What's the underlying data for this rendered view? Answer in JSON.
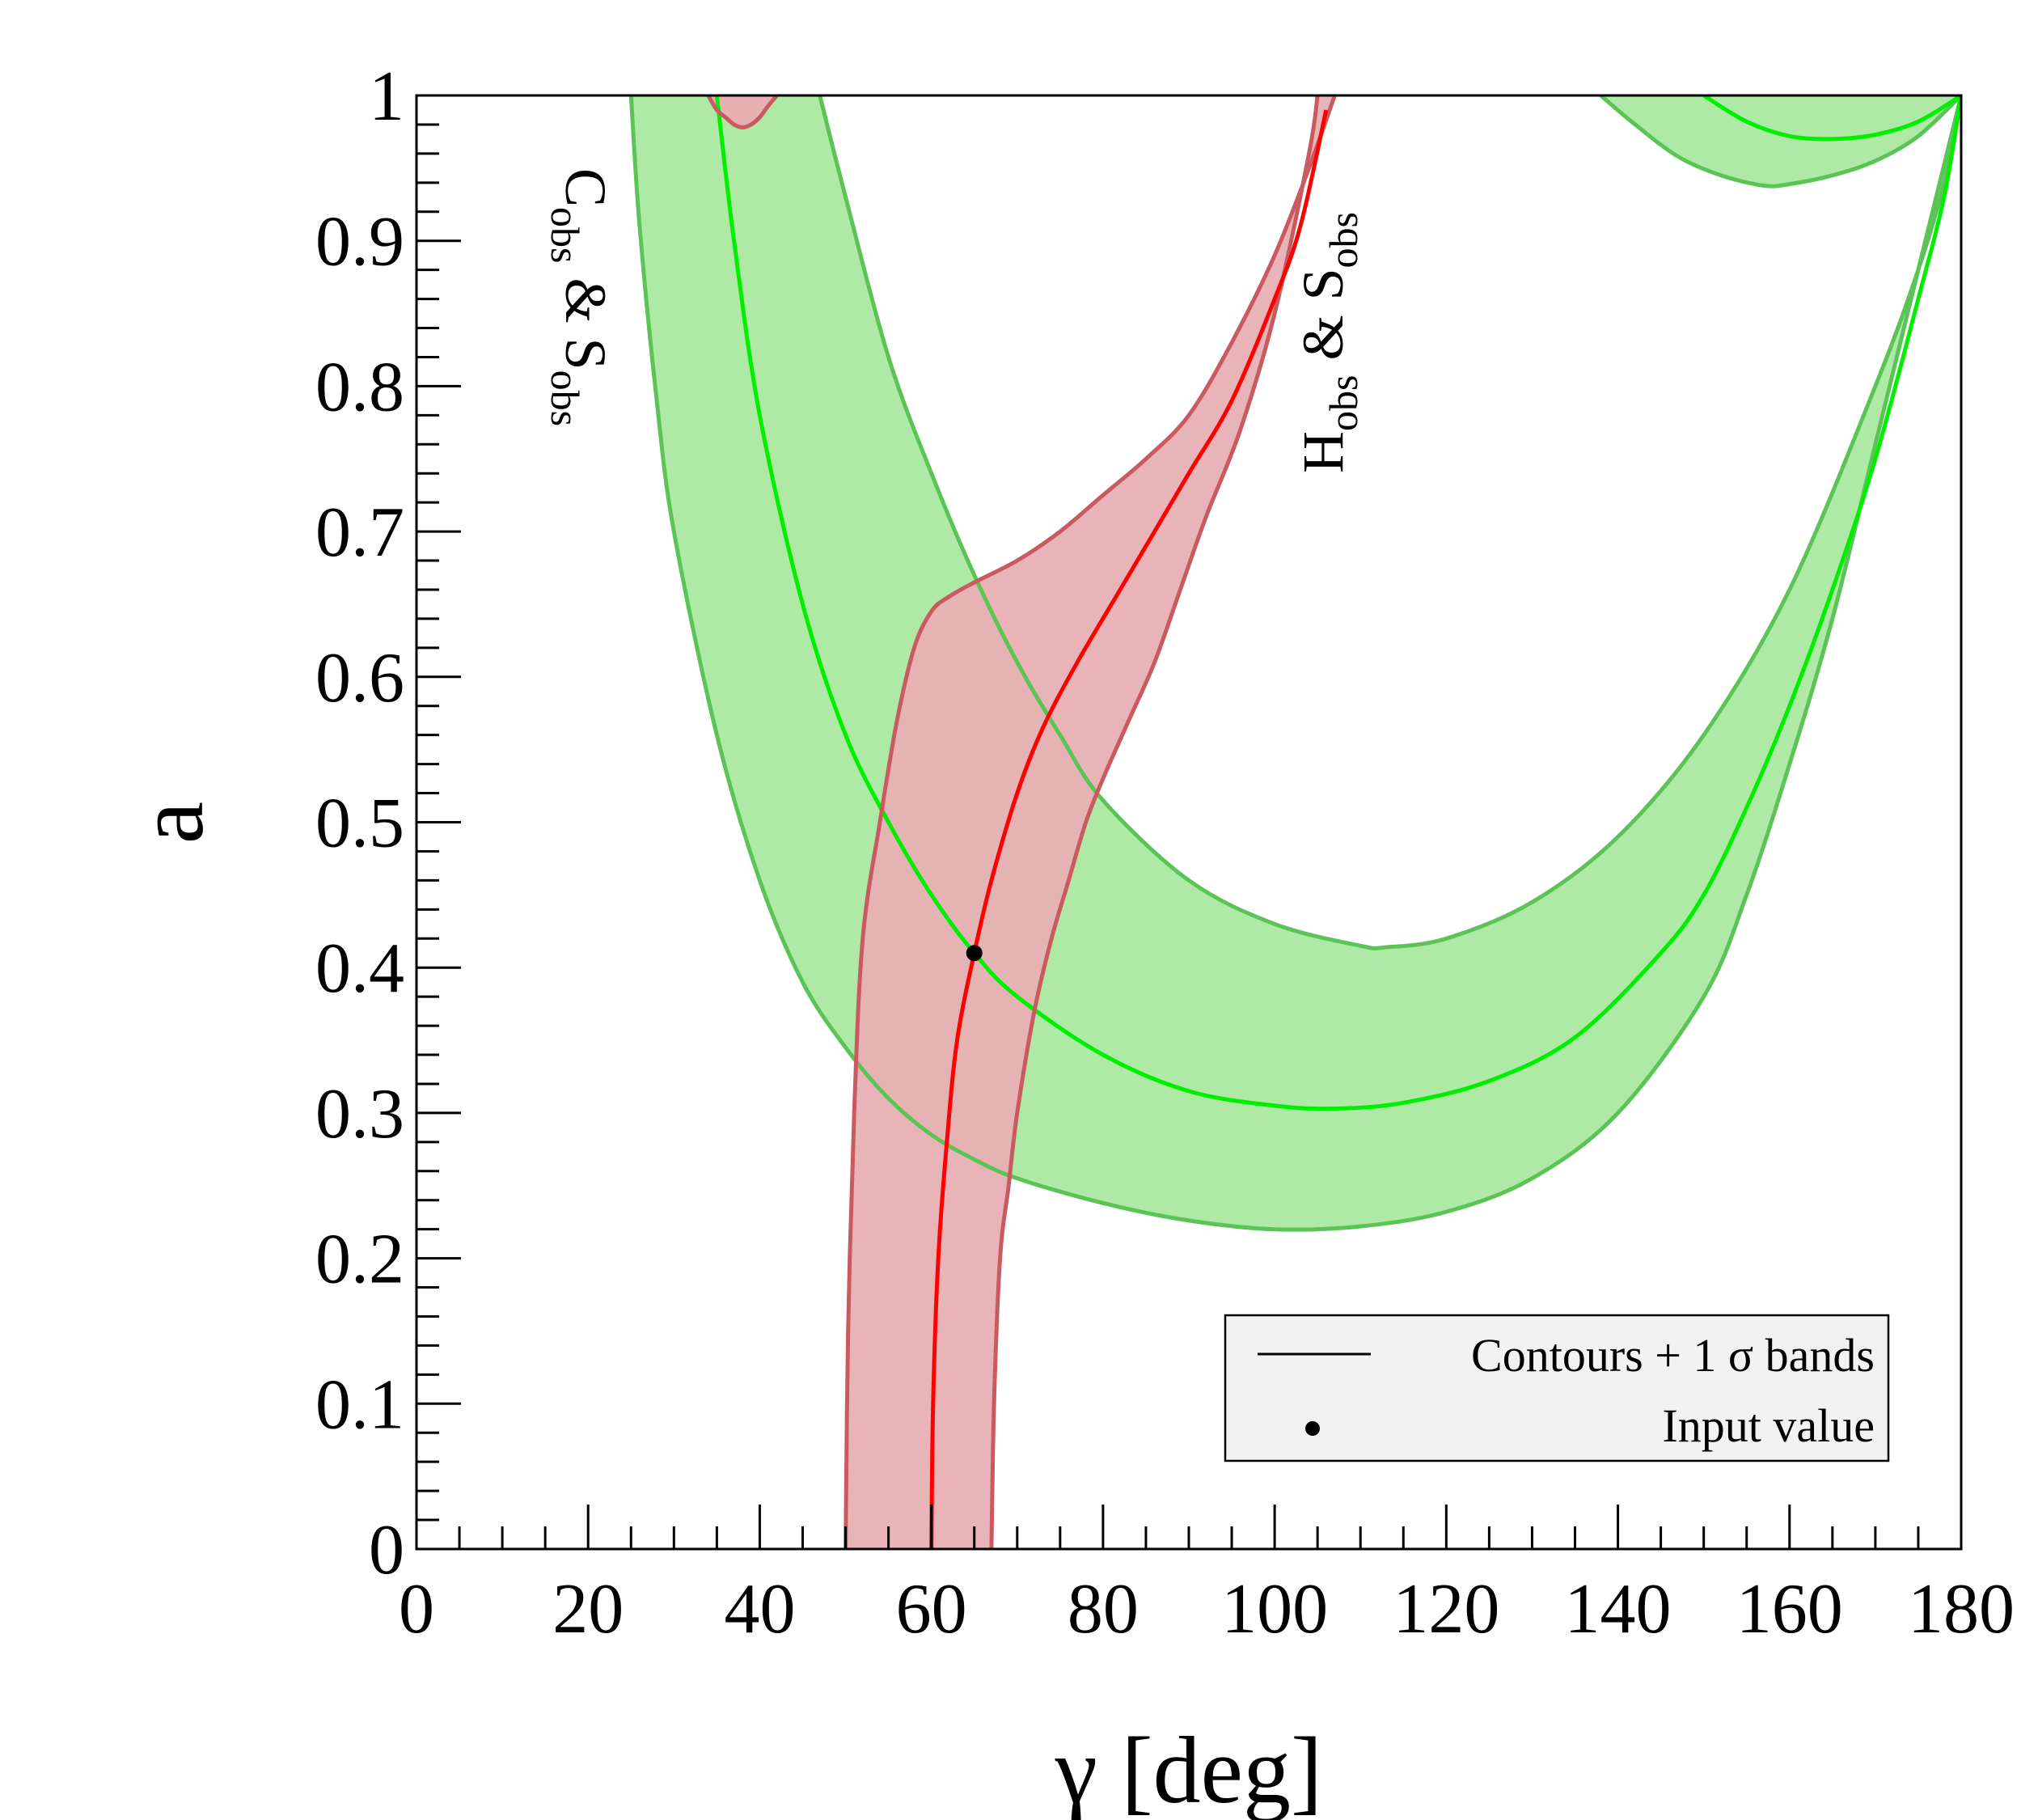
{
  "chart_data": {
    "type": "line",
    "xlabel": "γ [deg]",
    "ylabel": "a",
    "xlim": [
      0,
      180
    ],
    "ylim": [
      0,
      1
    ],
    "x_ticks": [
      "0",
      "20",
      "40",
      "60",
      "80",
      "100",
      "120",
      "140",
      "160",
      "180"
    ],
    "y_ticks": [
      "0",
      "0.1",
      "0.2",
      "0.3",
      "0.4",
      "0.5",
      "0.6",
      "0.7",
      "0.8",
      "0.9",
      "1"
    ],
    "band_labels": {
      "cs": {
        "main1": "C",
        "sub1": "obs",
        "amp": " & ",
        "main2": "S",
        "sub2": "obs"
      },
      "hs": {
        "main1": "H",
        "sub1": "obs",
        "amp": " & ",
        "main2": "S",
        "sub2": "obs"
      }
    },
    "legend": {
      "contours_label": "Contours + 1 σ bands",
      "input_label": "Input value"
    },
    "colors": {
      "green_fill": "#aeeaa6",
      "green_edge": "#5cc456",
      "green_line": "#00ee00",
      "red_fill": "#e8b0b3",
      "red_edge": "#c85a60",
      "red_line": "#ff0000"
    },
    "input_point": {
      "x": 65,
      "y": 0.41
    },
    "series": [
      {
        "name": "C_obs & S_obs central",
        "x": [
          35,
          37,
          40,
          45,
          50,
          55,
          60,
          65,
          70,
          80,
          90,
          100,
          107,
          115,
          125,
          135,
          145,
          150,
          155,
          160,
          165,
          170,
          175,
          178,
          180
        ],
        "y": [
          1.0,
          0.9,
          0.78,
          0.65,
          0.56,
          0.5,
          0.45,
          0.41,
          0.38,
          0.34,
          0.315,
          0.305,
          0.303,
          0.307,
          0.322,
          0.352,
          0.41,
          0.45,
          0.51,
          0.58,
          0.66,
          0.75,
          0.86,
          0.93,
          1.0
        ]
      },
      {
        "name": "C_obs & S_obs upper edge",
        "x": [
          47,
          50,
          55,
          60,
          65,
          70,
          75,
          80,
          90,
          100,
          110,
          113,
          120,
          130,
          140,
          150,
          160,
          170,
          175,
          178,
          180
        ],
        "y": [
          1.0,
          0.93,
          0.82,
          0.74,
          0.67,
          0.61,
          0.56,
          0.515,
          0.46,
          0.43,
          0.415,
          0.414,
          0.42,
          0.445,
          0.49,
          0.56,
          0.66,
          0.8,
          0.88,
          0.94,
          1.0
        ]
      },
      {
        "name": "C_obs & S_obs lower edge",
        "x": [
          25,
          26,
          28,
          30,
          35,
          40,
          45,
          50,
          55,
          60,
          65,
          70,
          80,
          90,
          100,
          110,
          120,
          130,
          140,
          150,
          155,
          160,
          165,
          170,
          175,
          180
        ],
        "y": [
          1.0,
          0.91,
          0.79,
          0.7,
          0.56,
          0.46,
          0.39,
          0.345,
          0.31,
          0.285,
          0.268,
          0.255,
          0.238,
          0.226,
          0.22,
          0.222,
          0.232,
          0.255,
          0.3,
          0.38,
          0.45,
          0.54,
          0.64,
          0.76,
          0.88,
          1.0
        ]
      },
      {
        "name": "C_obs & S_obs upper-right central",
        "x": [
          150,
          155,
          160,
          165,
          170,
          175,
          180
        ],
        "y": [
          1.0,
          0.982,
          0.972,
          0.97,
          0.973,
          0.982,
          1.0
        ]
      },
      {
        "name": "C_obs & S_obs upper-right lower edge",
        "x": [
          138,
          142,
          147,
          152,
          157,
          160,
          165,
          170,
          175,
          180
        ],
        "y": [
          1.0,
          0.98,
          0.958,
          0.945,
          0.938,
          0.939,
          0.945,
          0.955,
          0.972,
          1.0
        ]
      },
      {
        "name": "H_obs & S_obs central",
        "x": [
          60,
          60.2,
          60.8,
          61.8,
          63,
          65,
          67,
          70,
          73,
          77,
          82,
          86,
          90,
          95,
          100,
          103,
          106
        ],
        "y": [
          0.0,
          0.1,
          0.2,
          0.28,
          0.35,
          0.41,
          0.46,
          0.52,
          0.565,
          0.61,
          0.66,
          0.7,
          0.74,
          0.79,
          0.86,
          0.91,
          0.99
        ]
      },
      {
        "name": "H_obs & S_obs upper edge",
        "x": [
          50,
          50.3,
          51,
          52,
          54,
          56,
          58,
          60,
          62,
          65,
          70,
          75,
          80,
          85,
          90,
          95,
          100,
          104,
          107
        ],
        "y": [
          0.0,
          0.15,
          0.3,
          0.42,
          0.5,
          0.57,
          0.62,
          0.645,
          0.655,
          0.665,
          0.68,
          0.7,
          0.725,
          0.75,
          0.78,
          0.83,
          0.89,
          0.95,
          1.0
        ]
      },
      {
        "name": "H_obs & S_obs lower edge",
        "x": [
          67,
          67.3,
          68,
          69,
          70,
          72,
          74,
          76,
          78,
          80,
          83,
          86,
          89,
          92,
          96,
          100,
          104,
          105
        ],
        "y": [
          0.0,
          0.1,
          0.2,
          0.25,
          0.3,
          0.37,
          0.42,
          0.46,
          0.5,
          0.53,
          0.57,
          0.61,
          0.66,
          0.71,
          0.77,
          0.85,
          0.96,
          1.0
        ]
      },
      {
        "name": "H_obs & S_obs top island",
        "x": [
          34,
          35,
          36,
          37,
          38,
          39,
          40,
          41,
          42,
          41,
          40,
          38,
          36,
          34
        ],
        "y": [
          1.0,
          0.99,
          0.985,
          0.98,
          0.978,
          0.98,
          0.985,
          0.993,
          1.0,
          1.0,
          1.0,
          1.0,
          1.0,
          1.0
        ]
      }
    ]
  }
}
